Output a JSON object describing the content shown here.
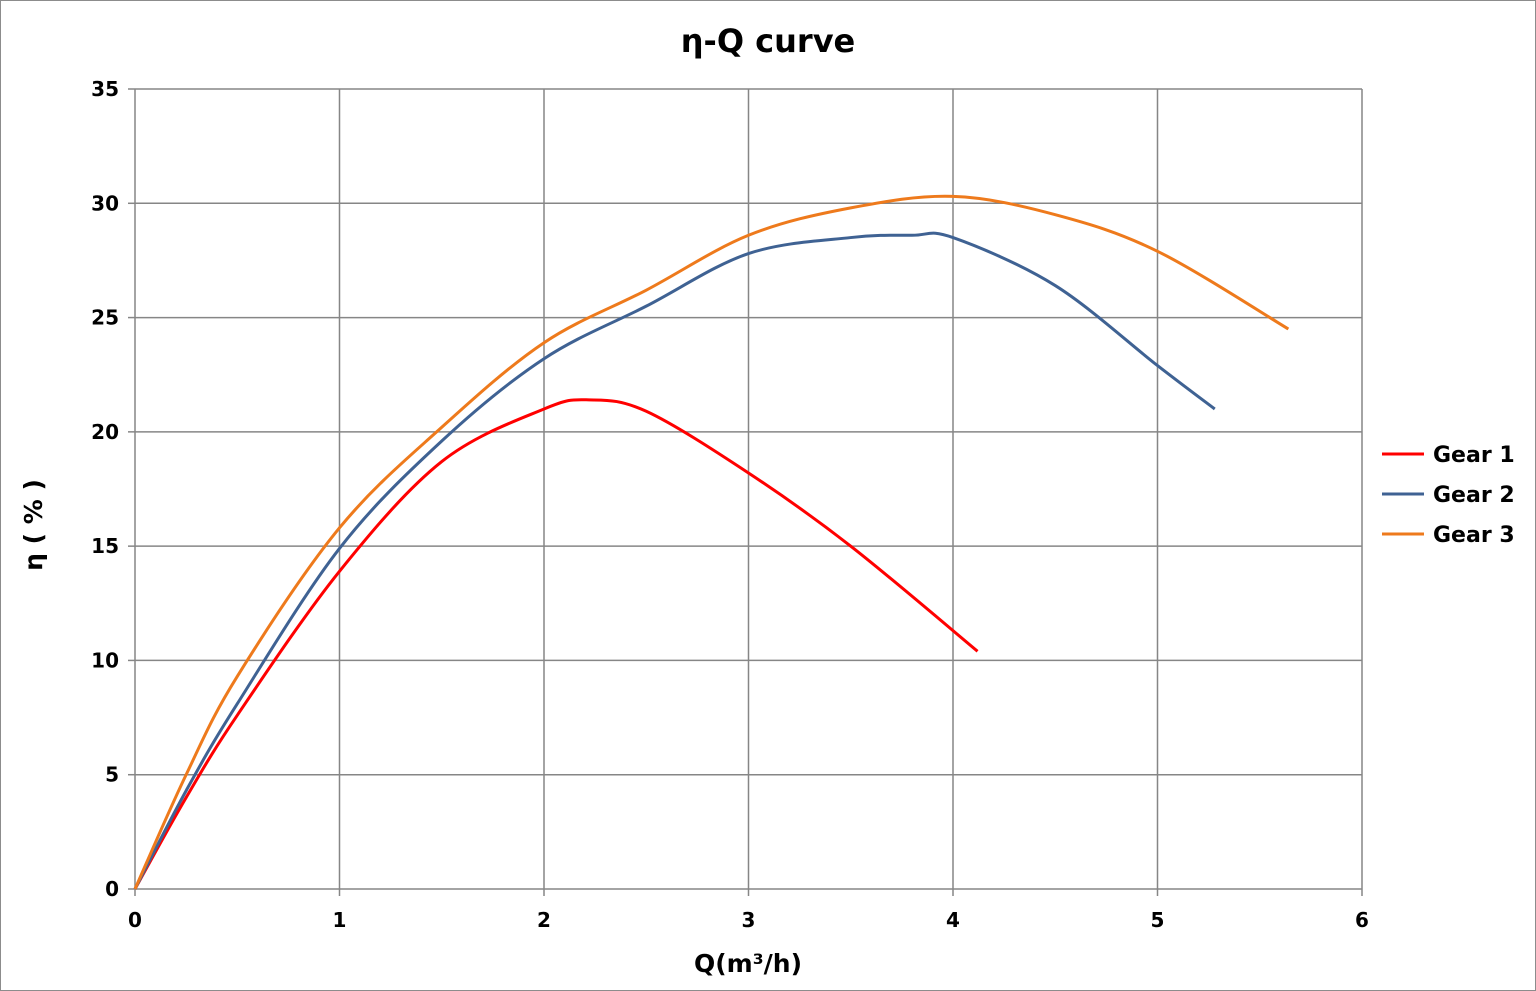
{
  "chart_data": {
    "type": "line",
    "title": "η-Q  curve",
    "xlabel": "Q(m³/h)",
    "ylabel": "η ( % )",
    "xlim": [
      0,
      6
    ],
    "ylim": [
      0,
      35
    ],
    "xticks": [
      "0",
      "1",
      "2",
      "3",
      "4",
      "5",
      "6"
    ],
    "yticks": [
      "0",
      "5",
      "10",
      "15",
      "20",
      "25",
      "30",
      "35"
    ],
    "grid": true,
    "legend_position": "right",
    "series": [
      {
        "name": "Gear 1",
        "color": "#ff0000",
        "x": [
          0,
          0.25,
          0.5,
          1.0,
          1.5,
          2.0,
          2.22,
          2.5,
          3.0,
          3.5,
          4.12
        ],
        "y": [
          0,
          4.0,
          7.6,
          13.9,
          18.7,
          21.0,
          21.4,
          20.9,
          18.2,
          15.0,
          10.4
        ]
      },
      {
        "name": "Gear 2",
        "color": "#3f6293",
        "x": [
          0,
          0.25,
          0.5,
          1.0,
          1.5,
          2.0,
          2.5,
          3.0,
          3.5,
          3.8,
          4.0,
          4.5,
          5.0,
          5.28
        ],
        "y": [
          0,
          4.3,
          8.1,
          14.9,
          19.6,
          23.2,
          25.5,
          27.8,
          28.5,
          28.6,
          28.5,
          26.4,
          22.9,
          21.0
        ]
      },
      {
        "name": "Gear 3",
        "color": "#ee7a1c",
        "x": [
          0,
          0.25,
          0.5,
          1.0,
          1.5,
          2.0,
          2.5,
          3.0,
          3.5,
          4.0,
          4.5,
          5.0,
          5.64
        ],
        "y": [
          0,
          5.0,
          9.3,
          15.8,
          20.2,
          23.9,
          26.2,
          28.6,
          29.8,
          30.3,
          29.5,
          27.9,
          24.5
        ]
      }
    ]
  }
}
